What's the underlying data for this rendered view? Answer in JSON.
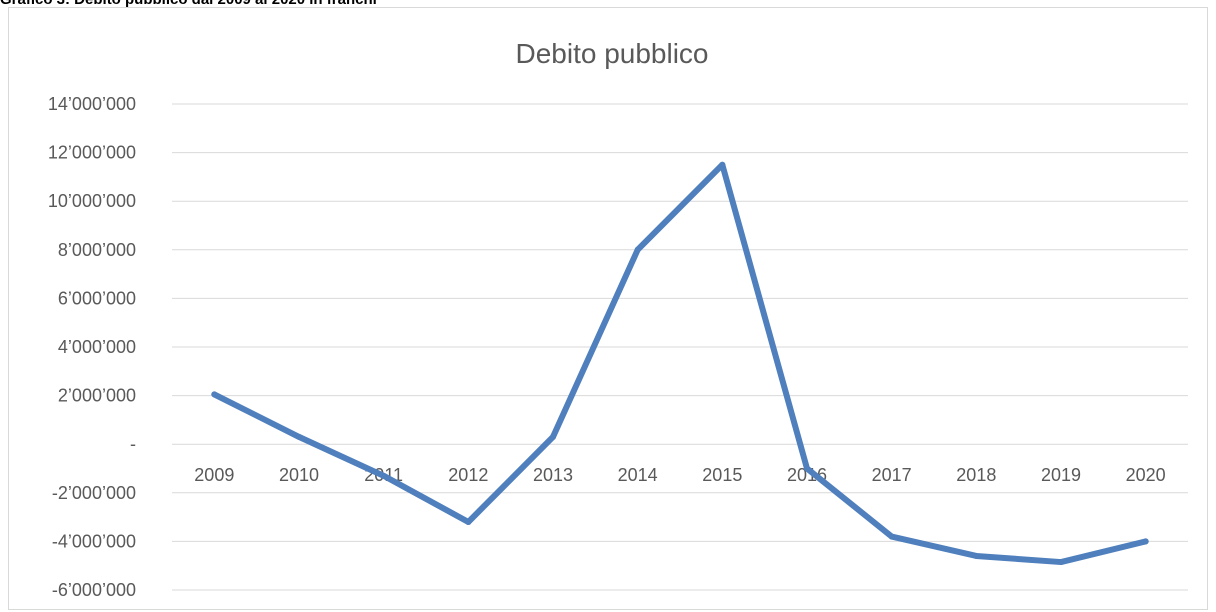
{
  "caption": "Grafico 3: Debito pubblico dal 2009 al 2020 in franchi",
  "colors": {
    "series": "#4f7fbd",
    "grid": "#d9d9d9",
    "text": "#595959"
  },
  "chart_data": {
    "type": "line",
    "title": "Debito pubblico",
    "xlabel": "",
    "ylabel": "",
    "categories": [
      "2009",
      "2010",
      "2011",
      "2012",
      "2013",
      "2014",
      "2015",
      "2016",
      "2017",
      "2018",
      "2019",
      "2020"
    ],
    "series": [
      {
        "values": [
          2050000,
          300000,
          -1300000,
          -3200000,
          300000,
          8000000,
          11500000,
          -1000000,
          -3800000,
          -4600000,
          -4850000,
          -4000000
        ]
      }
    ],
    "ylim": [
      -6000000,
      14000000
    ],
    "yticks": [
      14000000,
      12000000,
      10000000,
      8000000,
      6000000,
      4000000,
      2000000,
      0,
      -2000000,
      -4000000,
      -6000000
    ],
    "ytick_labels": [
      "14’000’000",
      "12’000’000",
      "10’000’000",
      "8’000’000",
      "6’000’000",
      "4’000’000",
      "2’000’000",
      "-",
      "-2’000’000",
      "-4’000’000",
      "-6’000’000"
    ],
    "grid": true,
    "legend": "none"
  }
}
